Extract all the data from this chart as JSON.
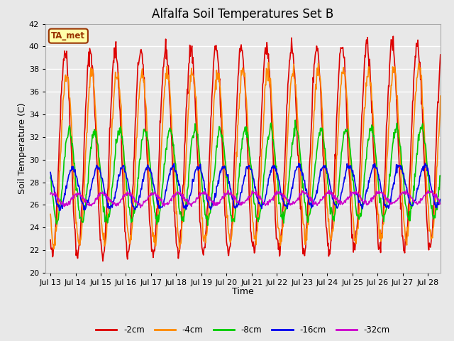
{
  "title": "Alfalfa Soil Temperatures Set B",
  "xlabel": "Time",
  "ylabel": "Soil Temperature (C)",
  "ylim": [
    20,
    42
  ],
  "xlim_days": [
    -0.2,
    15.5
  ],
  "x_tick_labels": [
    "Jul 13",
    "Jul 14",
    "Jul 15",
    "Jul 16",
    "Jul 17",
    "Jul 18",
    "Jul 19",
    "Jul 20",
    "Jul 21",
    "Jul 22",
    "Jul 23",
    "Jul 24",
    "Jul 25",
    "Jul 26",
    "Jul 27",
    "Jul 28"
  ],
  "x_tick_positions": [
    0,
    1,
    2,
    3,
    4,
    5,
    6,
    7,
    8,
    9,
    10,
    11,
    12,
    13,
    14,
    15
  ],
  "series": {
    "-2cm": {
      "color": "#dd0000",
      "lw": 1.2
    },
    "-4cm": {
      "color": "#ff8800",
      "lw": 1.2
    },
    "-8cm": {
      "color": "#00cc00",
      "lw": 1.2
    },
    "-16cm": {
      "color": "#0000ee",
      "lw": 1.2
    },
    "-32cm": {
      "color": "#cc00cc",
      "lw": 1.2
    }
  },
  "annotation_text": "TA_met",
  "annotation_bg": "#ffffaa",
  "annotation_edge": "#993300",
  "bg_color": "#e8e8e8",
  "grid_color": "#ffffff",
  "title_fontsize": 12,
  "fig_bg": "#e8e8e8"
}
